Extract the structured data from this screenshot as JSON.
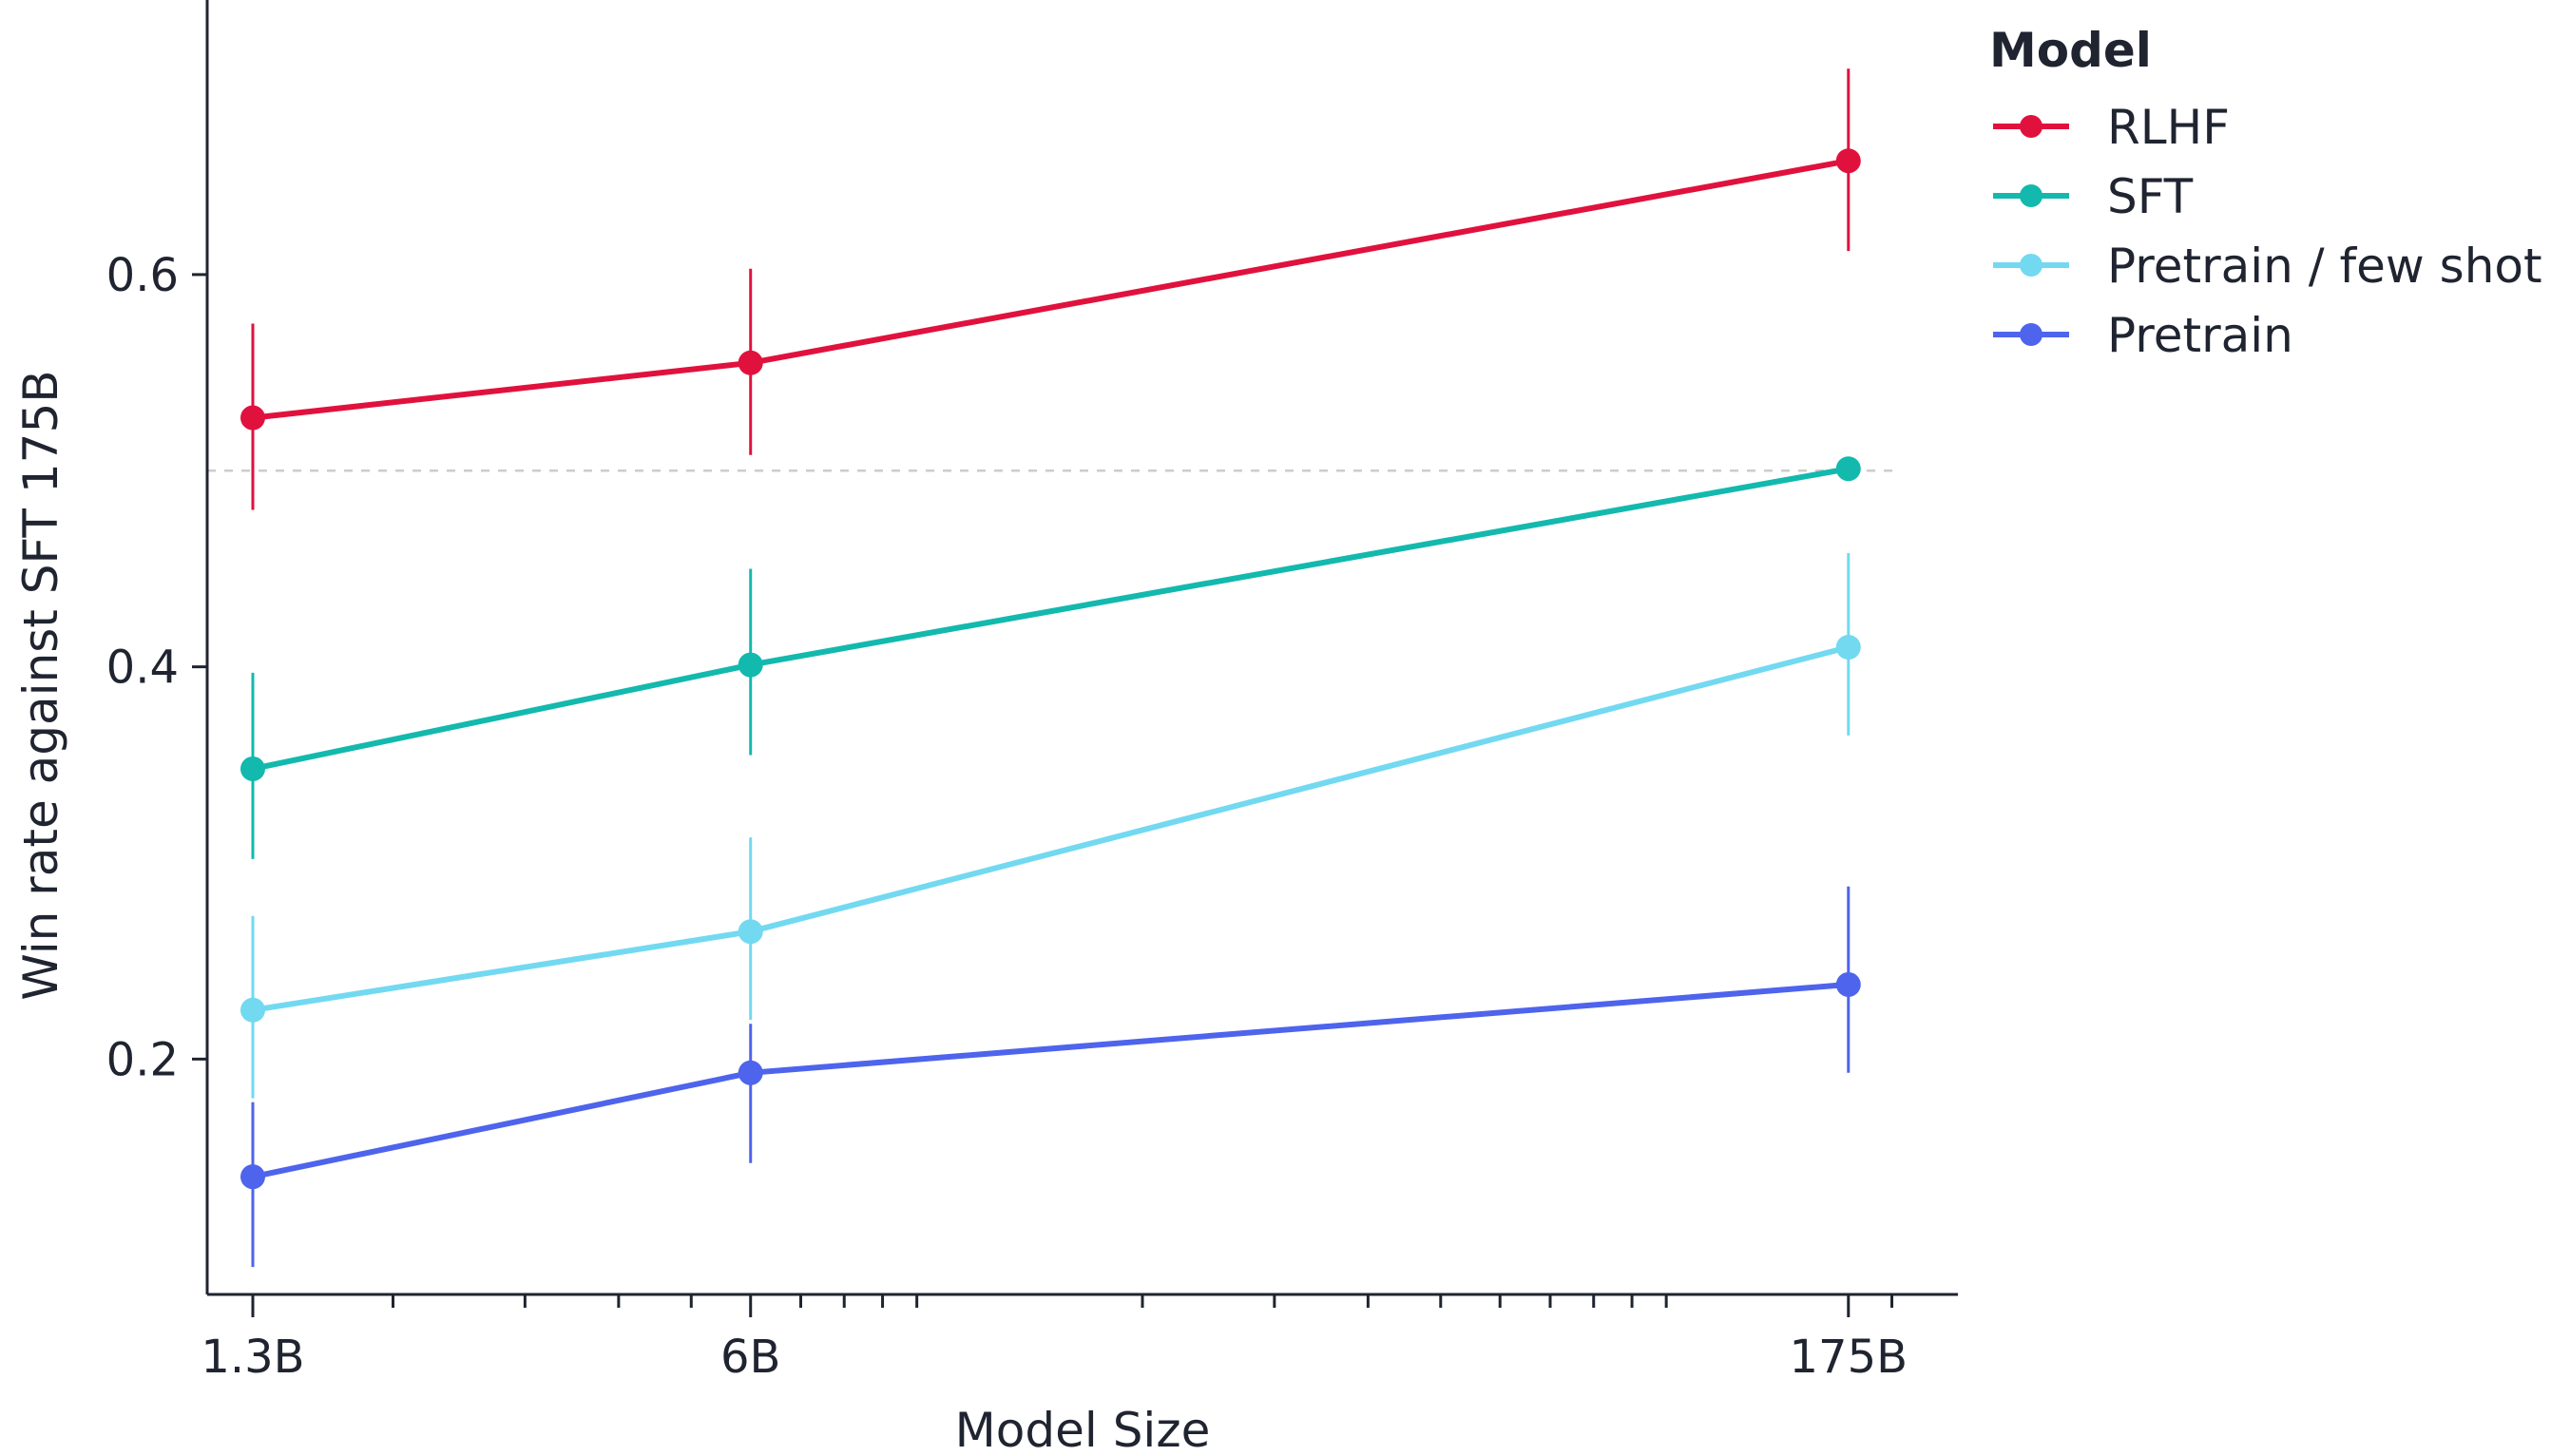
{
  "chart_data": {
    "type": "line",
    "xlabel": "Model Size",
    "ylabel": "Win rate against SFT 175B",
    "x_scale": "log",
    "x_ticks": [
      {
        "value": 1.3,
        "label": "1.3B"
      },
      {
        "value": 6,
        "label": "6B"
      },
      {
        "value": 175,
        "label": "175B"
      }
    ],
    "y_ticks": [
      {
        "value": 0.2,
        "label": "0.2"
      },
      {
        "value": 0.4,
        "label": "0.4"
      },
      {
        "value": 0.6,
        "label": "0.6"
      }
    ],
    "xlim": [
      1.13,
      245
    ],
    "ylim": [
      0.08,
      0.74
    ],
    "reference_line": {
      "y": 0.5,
      "style": "dashed",
      "color": "#cccccc"
    },
    "grid": false,
    "legend": {
      "title": "Model",
      "placement": "right"
    },
    "x": [
      1.3,
      6,
      175
    ],
    "series": [
      {
        "name": "RLHF",
        "color": "#e0123d",
        "values": [
          0.527,
          0.555,
          0.658
        ],
        "err_low": [
          0.48,
          0.508,
          0.612
        ],
        "err_high": [
          0.575,
          0.603,
          0.705
        ]
      },
      {
        "name": "SFT",
        "color": "#13b9ad",
        "values": [
          0.348,
          0.401,
          0.501
        ],
        "err_low": [
          0.302,
          0.355,
          0.501
        ],
        "err_high": [
          0.397,
          0.45,
          0.501
        ]
      },
      {
        "name": "Pretrain / few shot",
        "color": "#72d9f1",
        "values": [
          0.225,
          0.265,
          0.41
        ],
        "err_low": [
          0.18,
          0.22,
          0.365
        ],
        "err_high": [
          0.273,
          0.313,
          0.458
        ]
      },
      {
        "name": "Pretrain",
        "color": "#4e64ec",
        "values": [
          0.14,
          0.193,
          0.238
        ],
        "err_low": [
          0.094,
          0.147,
          0.193
        ],
        "err_high": [
          0.178,
          0.218,
          0.288
        ]
      }
    ]
  }
}
